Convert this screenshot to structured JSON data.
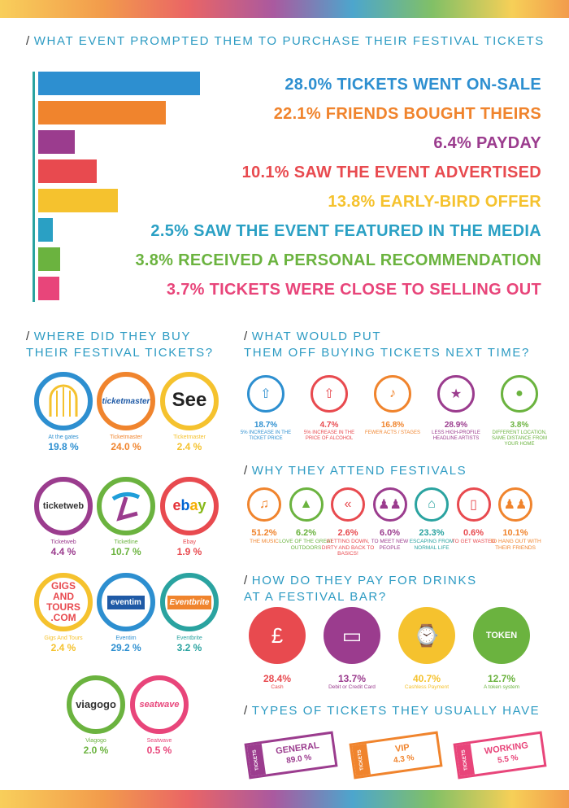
{
  "headings": {
    "h1": "WHAT EVENT PROMPTED THEM TO PURCHASE THEIR FESTIVAL TICKETS",
    "h2_line1": "WHERE DID THEY BUY",
    "h2_line2": "THEIR FESTIVAL TICKETS?",
    "h3_line1": "WHAT WOULD PUT",
    "h3_line2": "THEM OFF BUYING TICKETS NEXT TIME?",
    "h4": "WHY THEY ATTEND FESTIVALS",
    "h5_line1": "HOW DO THEY PAY FOR DRINKS",
    "h5_line2": "AT A FESTIVAL BAR?",
    "h6": "TYPES OF TICKETS THEY USUALLY HAVE",
    "slash": "/"
  },
  "chart_data": [
    {
      "type": "bar",
      "title": "WHAT EVENT PROMPTED THEM TO PURCHASE THEIR FESTIVAL TICKETS",
      "categories": [
        "TICKETS WENT ON-SALE",
        "FRIENDS BOUGHT THEIRS",
        "PAYDAY",
        "SAW THE EVENT ADVERTISED",
        "EARLY-BIRD OFFER",
        "SAW THE EVENT FEATURED IN THE MEDIA",
        "RECEIVED A PERSONAL RECOMMENDATION",
        "TICKETS WERE CLOSE TO SELLING OUT"
      ],
      "values": [
        28.0,
        22.1,
        6.4,
        10.1,
        13.8,
        2.5,
        3.8,
        3.7
      ],
      "labels": [
        "28.0% TICKETS WENT ON-SALE",
        "22.1% FRIENDS BOUGHT THEIRS",
        "6.4% PAYDAY",
        "10.1% SAW THE EVENT ADVERTISED",
        "13.8% EARLY-BIRD OFFER",
        "2.5% SAW THE EVENT FEATURED IN THE MEDIA",
        "3.8% RECEIVED A PERSONAL RECOMMENDATION",
        "3.7% TICKETS WERE CLOSE TO SELLING OUT"
      ],
      "colors": [
        "#2d8fd0",
        "#f0842d",
        "#9b3c8e",
        "#e84a4f",
        "#f5c22e",
        "#2aa0c4",
        "#6bb33f",
        "#e8457a"
      ]
    },
    {
      "type": "table",
      "title": "WHERE DID THEY BUY THEIR FESTIVAL TICKETS?",
      "rows": [
        {
          "logo": "",
          "name": "At the gates",
          "value": "19.8 %",
          "color": "#2d8fd0"
        },
        {
          "logo": "ticketmaster",
          "name": "Ticketmaster",
          "value": "24.0 %",
          "color": "#f0842d"
        },
        {
          "logo": "See",
          "name": "Ticketmaster",
          "value": "2.4 %",
          "color": "#f5c22e"
        },
        {
          "logo": "ticketweb",
          "name": "Ticketweb",
          "value": "4.4 %",
          "color": "#9b3c8e"
        },
        {
          "logo": "TL",
          "name": "Ticketline",
          "value": "10.7 %",
          "color": "#6bb33f"
        },
        {
          "logo": "ebay",
          "name": "Ebay",
          "value": "1.9 %",
          "color": "#e84a4f"
        },
        {
          "logo": "GIGS AND TOURS .COM",
          "name": "Gigs And Tours",
          "value": "2.4 %",
          "color": "#f5c22e"
        },
        {
          "logo": "eventim",
          "name": "Eventim",
          "value": "29.2 %",
          "color": "#2d8fd0"
        },
        {
          "logo": "Eventbrite",
          "name": "Eventbrite",
          "value": "3.2 %",
          "color": "#2aa3a0"
        },
        {
          "logo": "viagogo",
          "name": "Viagogo",
          "value": "2.0 %",
          "color": "#6bb33f"
        },
        {
          "logo": "seatwave",
          "name": "Seatwave",
          "value": "0.5 %",
          "color": "#e8457a"
        }
      ]
    },
    {
      "type": "table",
      "title": "WHAT WOULD PUT THEM OFF BUYING TICKETS NEXT TIME?",
      "rows": [
        {
          "value": "18.7%",
          "caption": "5% INCREASE IN THE TICKET PRICE",
          "color": "#2d8fd0",
          "icon": "ticket-arrow-icon"
        },
        {
          "value": "4.7%",
          "caption": "5% INCREASE IN THE PRICE OF ALCOHOL",
          "color": "#e84a4f",
          "icon": "bottle-arrow-icon"
        },
        {
          "value": "16.8%",
          "caption": "FEWER ACTS / STAGES",
          "color": "#f0842d",
          "icon": "performer-icon"
        },
        {
          "value": "28.9%",
          "caption": "LESS HIGH-PROFILE HEADLINE ARTISTS",
          "color": "#9b3c8e",
          "icon": "star-performer-icon"
        },
        {
          "value": "3.8%",
          "caption": "DIFFERENT LOCATION, SAME DISTANCE FROM YOUR HOME",
          "color": "#6bb33f",
          "icon": "location-pin-icon"
        }
      ]
    },
    {
      "type": "table",
      "title": "WHY THEY ATTEND FESTIVALS",
      "rows": [
        {
          "value": "51.2%",
          "caption": "THE MUSIC",
          "color": "#f0842d",
          "icon": "music-note-icon"
        },
        {
          "value": "6.2%",
          "caption": "LOVE OF THE GREAT OUTDOORS",
          "color": "#6bb33f",
          "icon": "tree-icon"
        },
        {
          "value": "2.6%",
          "caption": "GETTING DOWN, DIRTY AND BACK TO BASICS!",
          "color": "#e84a4f",
          "icon": "rewind-icon"
        },
        {
          "value": "6.0%",
          "caption": "TO MEET NEW PEOPLE",
          "color": "#9b3c8e",
          "icon": "people-icon"
        },
        {
          "value": "23.3%",
          "caption": "ESCAPING FROM NORMAL LIFE",
          "color": "#2aa3a0",
          "icon": "house-icon"
        },
        {
          "value": "0.6%",
          "caption": "TO GET WASTED",
          "color": "#e84a4f",
          "icon": "pint-glass-icon"
        },
        {
          "value": "10.1%",
          "caption": "TO HANG OUT WITH THEIR FRIENDS",
          "color": "#f0842d",
          "icon": "friends-icon"
        }
      ]
    },
    {
      "type": "table",
      "title": "HOW DO THEY PAY FOR DRINKS AT A FESTIVAL BAR?",
      "rows": [
        {
          "value": "28.4%",
          "caption": "Cash",
          "color": "#e84a4f",
          "icon": "coins-icon"
        },
        {
          "value": "13.7%",
          "caption": "Debit or Credit Card",
          "color": "#9b3c8e",
          "icon": "credit-card-icon"
        },
        {
          "value": "40.7%",
          "caption": "Cashless Payment",
          "color": "#f5c22e",
          "icon": "wristband-icon"
        },
        {
          "value": "12.7%",
          "caption": "A token system",
          "color": "#6bb33f",
          "icon": "token-icon",
          "label": "TOKEN"
        }
      ]
    },
    {
      "type": "table",
      "title": "TYPES OF TICKETS THEY USUALLY HAVE",
      "rows": [
        {
          "name": "GENERAL",
          "value": "89.0 %",
          "color": "#9b3c8e",
          "stub": "TICKETS"
        },
        {
          "name": "VIP",
          "value": "4.3 %",
          "color": "#f0842d",
          "stub": "TICKETS"
        },
        {
          "name": "WORKING",
          "value": "5.5 %",
          "color": "#e8457a",
          "stub": "TICKETS"
        }
      ]
    }
  ]
}
